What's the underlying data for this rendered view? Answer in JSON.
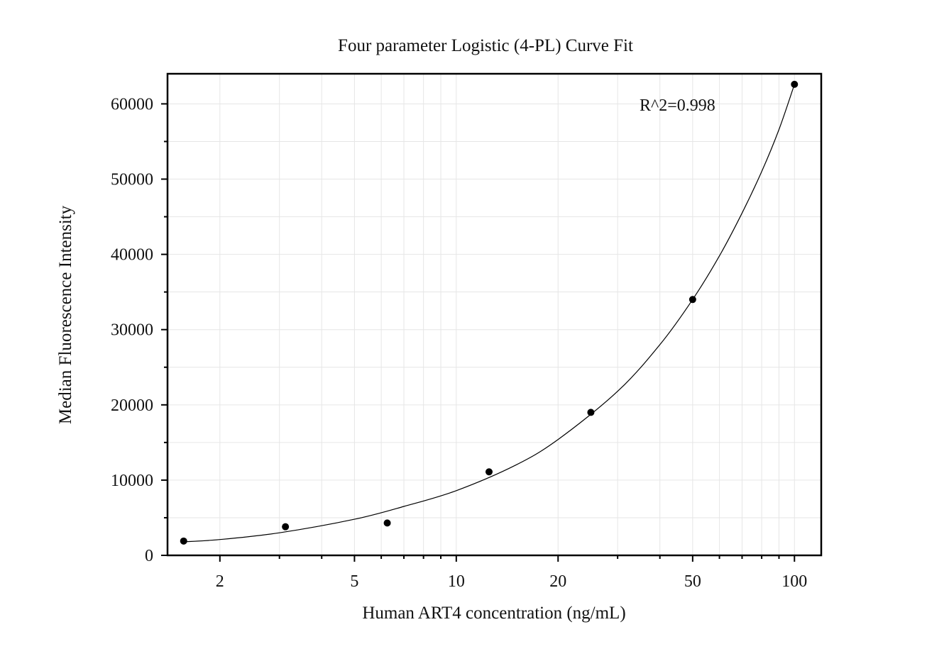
{
  "chart_data": {
    "type": "scatter",
    "title": "Four parameter Logistic (4-PL) Curve Fit",
    "xlabel": "Human ART4 concentration (ng/mL)",
    "ylabel": "Median Fluorescence Intensity",
    "x_scale": "log",
    "xlim": [
      1.4,
      120
    ],
    "ylim": [
      0,
      64000
    ],
    "x_ticks": [
      {
        "value": 2,
        "label": "2"
      },
      {
        "value": 5,
        "label": "5"
      },
      {
        "value": 10,
        "label": "10"
      },
      {
        "value": 20,
        "label": "20"
      },
      {
        "value": 50,
        "label": "50"
      },
      {
        "value": 100,
        "label": "100"
      }
    ],
    "y_ticks": [
      {
        "value": 0,
        "label": "0"
      },
      {
        "value": 10000,
        "label": "10000"
      },
      {
        "value": 20000,
        "label": "20000"
      },
      {
        "value": 30000,
        "label": "30000"
      },
      {
        "value": 40000,
        "label": "40000"
      },
      {
        "value": 50000,
        "label": "50000"
      },
      {
        "value": 60000,
        "label": "60000"
      }
    ],
    "grid": true,
    "annotation": "R^2=0.998",
    "points": [
      {
        "x": 1.5625,
        "y": 1900
      },
      {
        "x": 3.125,
        "y": 3800
      },
      {
        "x": 6.25,
        "y": 4300
      },
      {
        "x": 12.5,
        "y": 11100
      },
      {
        "x": 25,
        "y": 19000
      },
      {
        "x": 50,
        "y": 34000
      },
      {
        "x": 100,
        "y": 62600
      }
    ],
    "fit_curve": [
      {
        "x": 1.5625,
        "y": 1800
      },
      {
        "x": 2,
        "y": 2100
      },
      {
        "x": 3,
        "y": 3000
      },
      {
        "x": 5,
        "y": 4800
      },
      {
        "x": 7,
        "y": 6500
      },
      {
        "x": 10,
        "y": 8600
      },
      {
        "x": 15,
        "y": 12000
      },
      {
        "x": 20,
        "y": 15400
      },
      {
        "x": 30,
        "y": 21800
      },
      {
        "x": 40,
        "y": 28000
      },
      {
        "x": 50,
        "y": 34000
      },
      {
        "x": 60,
        "y": 39800
      },
      {
        "x": 70,
        "y": 45500
      },
      {
        "x": 80,
        "y": 51000
      },
      {
        "x": 90,
        "y": 56600
      },
      {
        "x": 100,
        "y": 62600
      }
    ],
    "colors": {
      "points": "#000000",
      "curve": "#000000",
      "grid": "#e6e6e6",
      "frame": "#000000"
    }
  }
}
